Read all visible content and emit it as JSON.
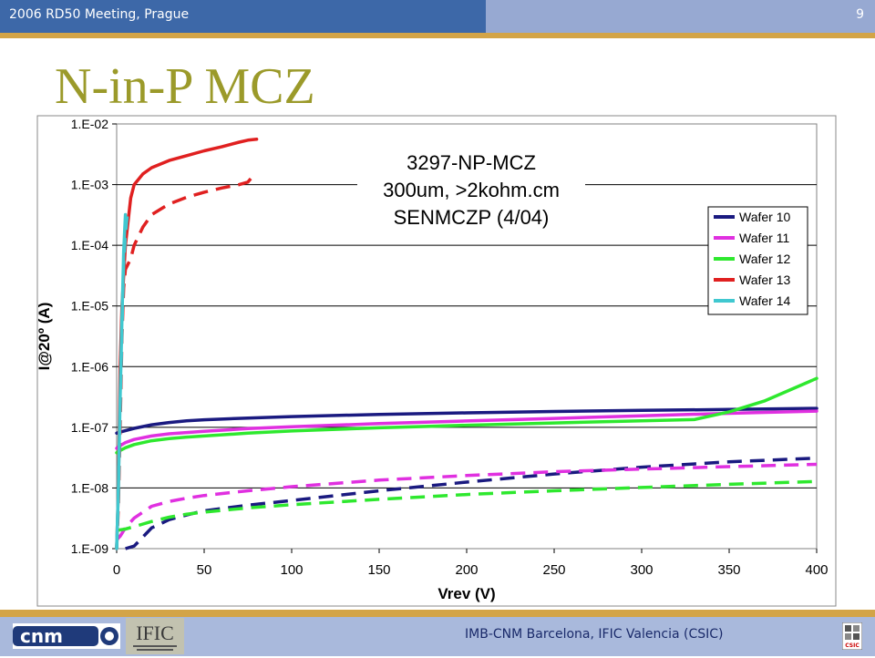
{
  "header": {
    "meeting": "2006 RD50 Meeting, Prague",
    "page_number": "9"
  },
  "slide": {
    "title": "N-in-P MCZ"
  },
  "footer": {
    "institutions": "IMB-CNM Barcelona, IFIC Valencia (CSIC)",
    "cnm_logo_text": "cnm",
    "ific_logo_text": "IFIC",
    "csic_logo_text": "CSIC"
  },
  "colors": {
    "header_blue": "#3d68a8",
    "header_light": "#97a9d2",
    "gold": "#d3a447",
    "title": "#9b9a2a",
    "plot_bg": "#ffffff",
    "footer_bar": "#a9b9dc"
  },
  "chart_data": {
    "type": "line",
    "title_lines": [
      "3297-NP-MCZ",
      "300um, >2kohm.cm",
      "SENMCZP (4/04)"
    ],
    "xlabel": "Vrev (V)",
    "ylabel": "I@20º (A)",
    "xlim": [
      0,
      400
    ],
    "ylim": [
      1e-09,
      0.01
    ],
    "y_scale": "log",
    "x_ticks": [
      "0",
      "50",
      "100",
      "150",
      "200",
      "250",
      "300",
      "350",
      "400"
    ],
    "y_ticks": [
      "1.E-09",
      "1.E-08",
      "1.E-07",
      "1.E-06",
      "1.E-05",
      "1.E-04",
      "1.E-03",
      "1.E-02"
    ],
    "grid": "horizontal",
    "legend_position": "upper-right",
    "series": [
      {
        "name": "Wafer 10",
        "color": "#1a1a80",
        "style": "solid",
        "x": [
          0,
          1,
          5,
          10,
          20,
          30,
          40,
          50,
          75,
          100,
          150,
          200,
          250,
          300,
          350,
          400
        ],
        "y": [
          8e-08,
          8.2e-08,
          8.8e-08,
          9.6e-08,
          1.1e-07,
          1.2e-07,
          1.28e-07,
          1.33e-07,
          1.42e-07,
          1.5e-07,
          1.63e-07,
          1.73e-07,
          1.82e-07,
          1.9e-07,
          1.97e-07,
          2.05e-07
        ]
      },
      {
        "name": "Wafer 10",
        "color": "#1a1a80",
        "style": "dashed",
        "x": [
          5,
          10,
          20,
          30,
          40,
          50,
          75,
          100,
          150,
          200,
          250,
          300,
          350,
          400
        ],
        "y": [
          9e-10,
          1.1e-09,
          2.2e-09,
          3e-09,
          3.6e-09,
          4.2e-09,
          5.2e-09,
          6.2e-09,
          9e-09,
          1.25e-08,
          1.7e-08,
          2.2e-08,
          2.7e-08,
          3.1e-08
        ]
      },
      {
        "name": "Wafer 11",
        "color": "#e030e0",
        "style": "solid",
        "x": [
          0,
          1,
          5,
          10,
          20,
          30,
          40,
          50,
          75,
          100,
          150,
          200,
          250,
          300,
          350,
          400
        ],
        "y": [
          4.5e-08,
          4.8e-08,
          5.6e-08,
          6.3e-08,
          7.2e-08,
          7.8e-08,
          8.2e-08,
          8.6e-08,
          9.5e-08,
          1.02e-07,
          1.15e-07,
          1.27e-07,
          1.4e-07,
          1.55e-07,
          1.7e-07,
          1.85e-07
        ]
      },
      {
        "name": "Wafer 11",
        "color": "#e030e0",
        "style": "dashed",
        "x": [
          0,
          2,
          5,
          10,
          20,
          30,
          40,
          50,
          75,
          100,
          150,
          200,
          250,
          300,
          350,
          400
        ],
        "y": [
          1.4e-09,
          1.6e-09,
          2.2e-09,
          3.2e-09,
          5e-09,
          6e-09,
          6.8e-09,
          7.5e-09,
          9e-09,
          1.05e-08,
          1.35e-08,
          1.6e-08,
          1.85e-08,
          2.05e-08,
          2.25e-08,
          2.45e-08
        ]
      },
      {
        "name": "Wafer 12",
        "color": "#2ee82e",
        "style": "solid",
        "x": [
          0,
          1,
          5,
          10,
          20,
          30,
          40,
          50,
          75,
          100,
          150,
          200,
          250,
          300,
          330,
          350,
          370,
          400
        ],
        "y": [
          3.8e-08,
          4e-08,
          4.6e-08,
          5.2e-08,
          6e-08,
          6.5e-08,
          6.9e-08,
          7.2e-08,
          8e-08,
          8.7e-08,
          9.8e-08,
          1.08e-07,
          1.18e-07,
          1.28e-07,
          1.34e-07,
          1.8e-07,
          2.7e-07,
          6.4e-07
        ]
      },
      {
        "name": "Wafer 12",
        "color": "#2ee82e",
        "style": "dashed",
        "x": [
          0,
          5,
          10,
          20,
          30,
          40,
          50,
          75,
          100,
          150,
          200,
          250,
          300,
          350,
          400
        ],
        "y": [
          2e-09,
          2.1e-09,
          2.3e-09,
          2.8e-09,
          3.3e-09,
          3.7e-09,
          4e-09,
          4.7e-09,
          5.3e-09,
          6.5e-09,
          7.8e-09,
          9e-09,
          1.02e-08,
          1.15e-08,
          1.28e-08
        ]
      },
      {
        "name": "Wafer 13",
        "color": "#e02020",
        "style": "solid",
        "x": [
          0,
          1,
          2,
          3,
          5,
          8,
          10,
          15,
          20,
          30,
          40,
          50,
          60,
          70,
          75,
          80
        ],
        "y": [
          1e-09,
          1e-08,
          1e-06,
          1e-05,
          0.0001,
          0.0006,
          0.001,
          0.0015,
          0.0019,
          0.0025,
          0.003,
          0.0036,
          0.0042,
          0.005,
          0.0054,
          0.0056
        ]
      },
      {
        "name": "Wafer 13",
        "color": "#e02020",
        "style": "dashed",
        "x": [
          0,
          1,
          2,
          3,
          4,
          5,
          8,
          10,
          15,
          20,
          30,
          40,
          50,
          60,
          70,
          75,
          78
        ],
        "y": [
          1e-09,
          5e-09,
          1e-07,
          3e-06,
          2e-05,
          4e-05,
          6e-05,
          0.0001,
          0.0002,
          0.00032,
          0.00048,
          0.00062,
          0.00075,
          0.00088,
          0.001,
          0.0011,
          0.0014
        ]
      },
      {
        "name": "Wafer 14",
        "color": "#40c8d0",
        "style": "solid",
        "x": [
          0,
          1,
          2,
          3,
          4,
          5
        ],
        "y": [
          1e-09,
          1e-08,
          3e-07,
          6e-06,
          8e-05,
          0.00032
        ]
      },
      {
        "name": "Wafer 14",
        "color": "#40c8d0",
        "style": "dashed",
        "x": [
          0,
          1,
          2,
          3,
          4,
          5,
          6
        ],
        "y": [
          1e-09,
          8e-09,
          2e-07,
          4e-06,
          5e-05,
          0.00015,
          0.0003
        ]
      }
    ]
  }
}
